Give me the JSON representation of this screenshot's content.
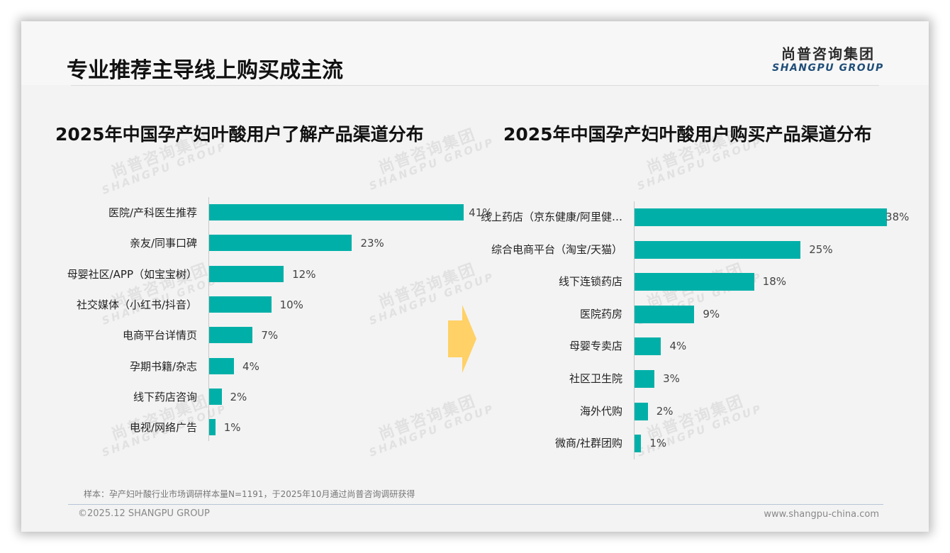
{
  "header": {
    "title": "专业推荐主导线上购买成主流",
    "logo_cn": "尚普咨询集团",
    "logo_en": "SHANGPU GROUP"
  },
  "watermark": {
    "cn": "尚普咨询集团",
    "en": "SHANGPU GROUP"
  },
  "colors": {
    "bar": "#00b0a8",
    "arrow": "#ffd166",
    "logo_en": "#1f4e79"
  },
  "chart_data": [
    {
      "type": "bar",
      "orientation": "horizontal",
      "title": "2025年中国孕产妇叶酸用户了解产品渠道分布",
      "categories": [
        "医院/产科医生推荐",
        "亲友/同事口碑",
        "母婴社区/APP（如宝宝树）",
        "社交媒体（小红书/抖音）",
        "电商平台详情页",
        "孕期书籍/杂志",
        "线下药店咨询",
        "电视/网络广告"
      ],
      "values": [
        41,
        23,
        12,
        10,
        7,
        4,
        2,
        1
      ],
      "labels": [
        "41%",
        "23%",
        "12%",
        "10%",
        "7%",
        "4%",
        "2%",
        "1%"
      ],
      "unit": "%",
      "xlabel": "",
      "ylabel": "",
      "grid": false,
      "legend": false
    },
    {
      "type": "bar",
      "orientation": "horizontal",
      "title": "2025年中国孕产妇叶酸用户购买产品渠道分布",
      "categories": [
        "线上药店（京东健康/阿里健…",
        "综合电商平台（淘宝/天猫）",
        "线下连锁药店",
        "医院药房",
        "母婴专卖店",
        "社区卫生院",
        "海外代购",
        "微商/社群团购"
      ],
      "values": [
        38,
        25,
        18,
        9,
        4,
        3,
        2,
        1
      ],
      "labels": [
        "38%",
        "25%",
        "18%",
        "9%",
        "4%",
        "3%",
        "2%",
        "1%"
      ],
      "unit": "%",
      "xlabel": "",
      "ylabel": "",
      "grid": false,
      "legend": false
    }
  ],
  "footer": {
    "source": "样本：孕产妇叶酸行业市场调研样本量N=1191，于2025年10月通过尚普咨询调研获得",
    "copyright": "©2025.12 SHANGPU GROUP",
    "website": "www.shangpu-china.com"
  }
}
